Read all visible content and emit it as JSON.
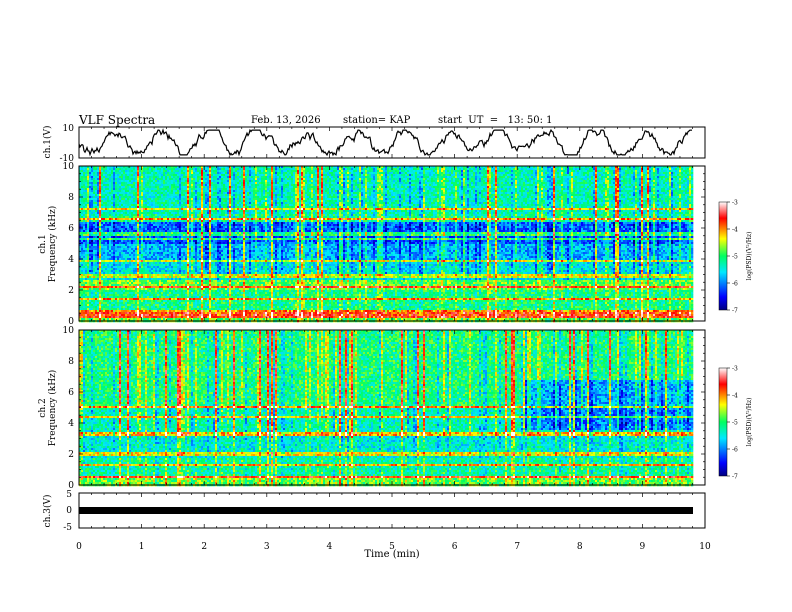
{
  "header": {
    "title": "VLF Spectra",
    "date": "Feb. 13, 2026",
    "station": "station= KAP",
    "start_ut": "start  UT  =   13: 50: 1"
  },
  "chart_data": [
    {
      "type": "line",
      "title": "ch.1 waveform",
      "ylabel": "ch.1(V)",
      "ylim": [
        -10,
        10
      ],
      "yticks": [
        "10",
        "-10"
      ],
      "xlim": [
        0,
        10
      ],
      "note": "continuous noisy trace roughly between -6 and 6 V over 0-9.8 min"
    },
    {
      "type": "heatmap",
      "title": "ch.1 spectrogram",
      "ylabel": "ch.1",
      "ylabel2": "Frequency (kHz)",
      "ylim": [
        0,
        10
      ],
      "yticks": [
        "0",
        "2",
        "4",
        "6",
        "8",
        "10"
      ],
      "xlim": [
        0,
        10
      ],
      "data_extent_min": [
        0,
        9.8
      ],
      "color_range": [
        -7,
        -3
      ],
      "colorbar_ticks": [
        "-3",
        "-4",
        "-5",
        "-6",
        "-7"
      ],
      "colorbar_label": "log(PSD)(V²/Hz)",
      "strong_bands_khz": [
        0.3,
        0.6,
        1.4,
        2.2,
        2.9,
        3.9,
        5.3,
        5.6,
        6.6,
        7.2
      ]
    },
    {
      "type": "heatmap",
      "title": "ch.2 spectrogram",
      "ylabel": "ch.2",
      "ylabel2": "Frequency (kHz)",
      "ylim": [
        0,
        10
      ],
      "yticks": [
        "0",
        "2",
        "4",
        "6",
        "8",
        "10"
      ],
      "xlim": [
        0,
        10
      ],
      "data_extent_min": [
        0,
        9.8
      ],
      "color_range": [
        -7,
        -3
      ],
      "colorbar_ticks": [
        "-3",
        "-4",
        "-5",
        "-6",
        "-7"
      ],
      "colorbar_label": "log(PSD)(V²/Hz)",
      "strong_bands_khz": [
        0.5,
        1.3,
        2.0,
        3.3,
        4.4,
        5.0
      ]
    },
    {
      "type": "line",
      "title": "ch.3 waveform",
      "ylabel": "ch.3(V)",
      "ylim": [
        -5,
        5
      ],
      "yticks": [
        "5",
        "0",
        "-5"
      ],
      "xlim": [
        0,
        10
      ],
      "note": "flat thick band near 0 V from 0 to 9.8 min"
    }
  ],
  "xaxis": {
    "label": "Time  (min)",
    "ticks": [
      "0",
      "1",
      "2",
      "3",
      "4",
      "5",
      "6",
      "7",
      "8",
      "9",
      "10"
    ]
  }
}
